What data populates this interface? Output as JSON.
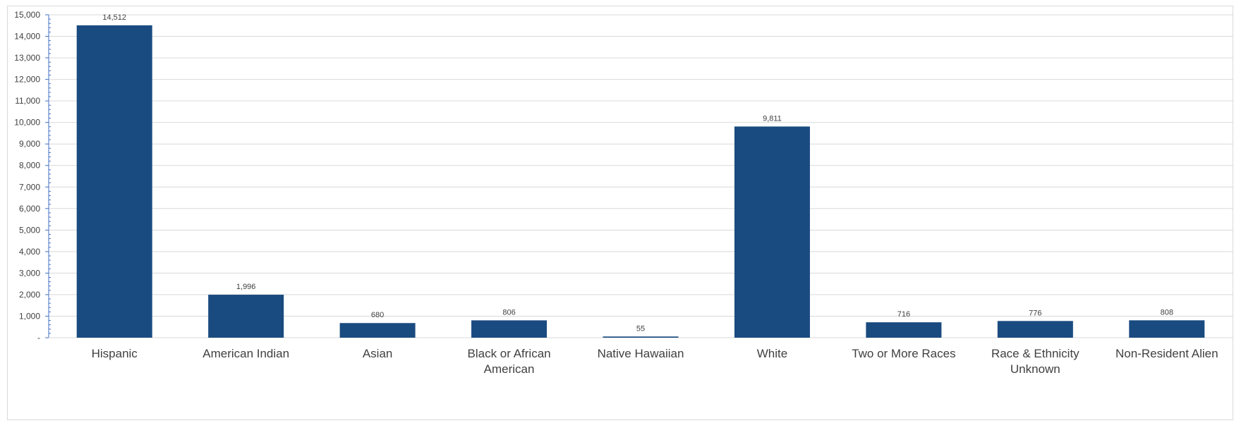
{
  "chart_data": {
    "type": "bar",
    "categories": [
      [
        "Hispanic"
      ],
      [
        "American Indian"
      ],
      [
        "Asian"
      ],
      [
        "Black or African",
        "American"
      ],
      [
        "Native Hawaiian"
      ],
      [
        "White"
      ],
      [
        "Two or More Races"
      ],
      [
        "Race & Ethnicity",
        "Unknown"
      ],
      [
        "Non-Resident Alien"
      ]
    ],
    "values": [
      14512,
      1996,
      680,
      806,
      55,
      9811,
      716,
      776,
      808
    ],
    "data_labels": [
      "14,512",
      "1,996",
      "680",
      "806",
      "55",
      "9,811",
      "716",
      "776",
      "808"
    ],
    "ylim": [
      0,
      15000
    ],
    "y_ticks": [
      0,
      1000,
      2000,
      3000,
      4000,
      5000,
      6000,
      7000,
      8000,
      9000,
      10000,
      11000,
      12000,
      13000,
      14000,
      15000
    ],
    "y_tick_labels": [
      "-",
      "1,000",
      "2,000",
      "3,000",
      "4,000",
      "5,000",
      "6,000",
      "7,000",
      "8,000",
      "9,000",
      "10,000",
      "11,000",
      "12,000",
      "13,000",
      "14,000",
      "15,000"
    ],
    "grid": true,
    "legend": "none",
    "title": "",
    "xlabel": "",
    "ylabel": ""
  },
  "colors": {
    "bar": "#1a4b80",
    "grid": "#d9d9d9",
    "axis": "#4472c4",
    "text": "#404040"
  }
}
